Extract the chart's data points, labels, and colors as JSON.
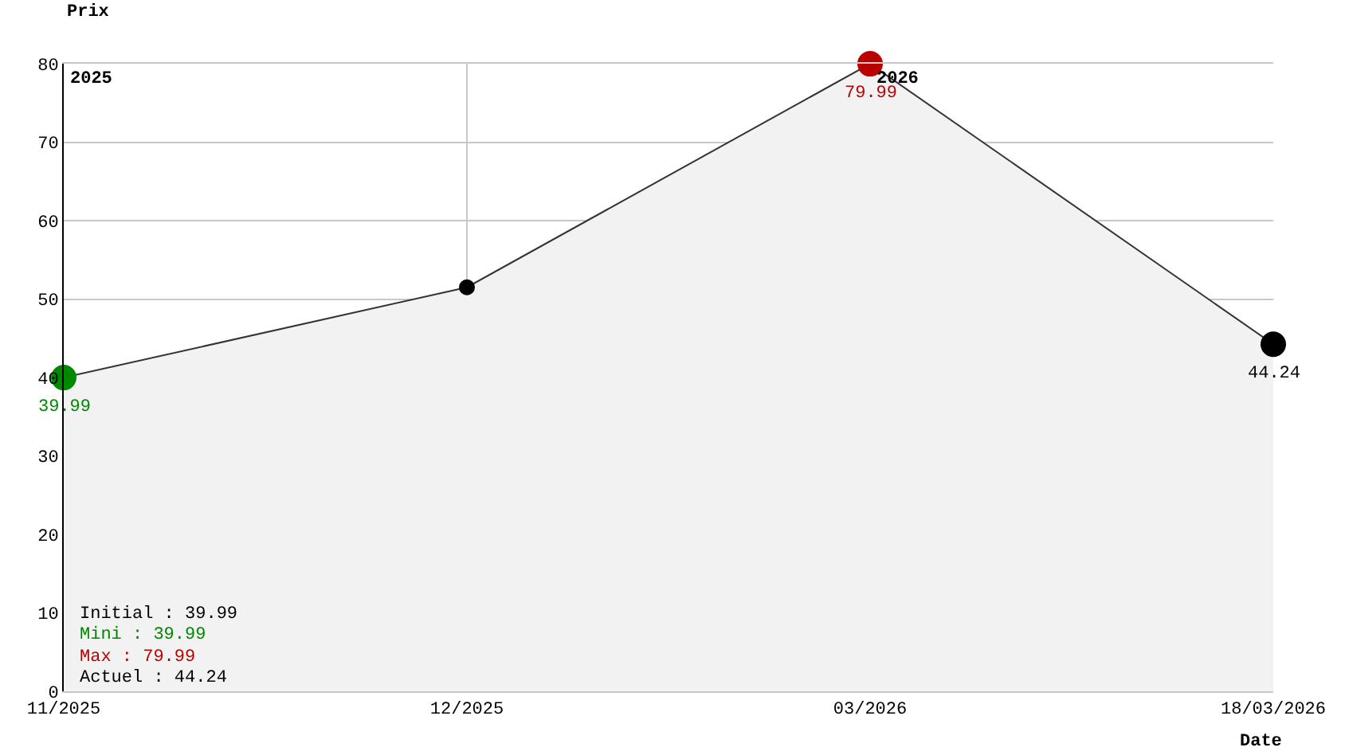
{
  "chart_data": {
    "type": "area",
    "xlabel": "Date",
    "ylabel": "Prix",
    "categories": [
      "11/2025",
      "12/2025",
      "03/2026",
      "18/03/2026"
    ],
    "values": [
      39.99,
      51.5,
      79.99,
      44.24
    ],
    "colors": [
      "#008800",
      "#000000",
      "#bb0000",
      "#000000"
    ],
    "value_labels": [
      "39.99",
      null,
      "79.99",
      "44.24"
    ],
    "color": "#f2f2f2",
    "ylim": [
      0,
      80
    ],
    "yticks": [
      0,
      10,
      20,
      30,
      40,
      50,
      60,
      70,
      80
    ],
    "grid": true,
    "marker": "circle",
    "annotations": [
      "2025",
      "2026",
      "Initial : 39.99",
      "Mini : 39.99",
      "Max : 79.99",
      "Actuel : 44.24"
    ]
  }
}
